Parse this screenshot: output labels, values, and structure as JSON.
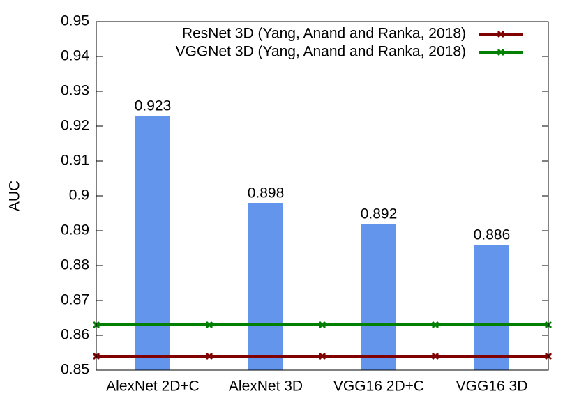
{
  "chart_data": {
    "type": "bar",
    "y_label": "AUC",
    "categories": [
      "AlexNet 2D+C",
      "AlexNet 3D",
      "VGG16 2D+C",
      "VGG16 3D"
    ],
    "values": [
      0.923,
      0.898,
      0.892,
      0.886
    ],
    "color": "#6495ed",
    "reference_lines": [
      {
        "name": "ResNet 3D (Yang, Anand and Ranka, 2018)",
        "color": "#800000",
        "value": 0.854
      },
      {
        "name": "VGGNet 3D (Yang, Anand and Ranka, 2018)",
        "color": "#008000",
        "value": 0.863
      }
    ],
    "ylim": [
      0.85,
      0.95
    ],
    "yticks": [
      0.85,
      0.86,
      0.87,
      0.88,
      0.89,
      0.9,
      0.91,
      0.92,
      0.93,
      0.94,
      0.95
    ],
    "grid": false,
    "legend": "top-right"
  }
}
